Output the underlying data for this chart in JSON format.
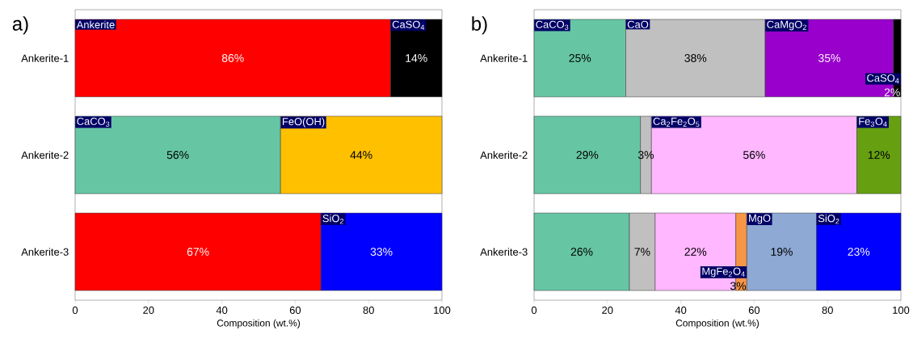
{
  "chart_data": [
    {
      "type": "bar",
      "title": "a)",
      "xlabel": "Composition (wt.%)",
      "orientation": "horizontal",
      "stacked": true,
      "categories": [
        "Ankerite-1",
        "Ankerite-2",
        "Ankerite-3"
      ],
      "xlim": [
        0,
        100
      ],
      "xticks": [
        0,
        20,
        40,
        60,
        80,
        100
      ],
      "series": [
        {
          "name": "Ankerite",
          "color": "#ff0000",
          "values": [
            86,
            null,
            67
          ],
          "value_labels": [
            "86%",
            null,
            "67%"
          ]
        },
        {
          "name": "CaCO$_{3}$",
          "color": "#66c6a4",
          "values": [
            null,
            56,
            null
          ],
          "value_labels": [
            null,
            "56%",
            null
          ]
        },
        {
          "name": "FeO(OH)",
          "color": "#ffc000",
          "values": [
            null,
            44,
            null
          ],
          "value_labels": [
            null,
            "44%",
            null
          ]
        },
        {
          "name": "CaSO$_{4}$",
          "color": "#000000",
          "values": [
            14,
            null,
            null
          ],
          "value_labels": [
            "14%",
            null,
            null
          ]
        },
        {
          "name": "SiO$_{2}$",
          "color": "#0000ff",
          "values": [
            null,
            null,
            33
          ],
          "value_labels": [
            null,
            null,
            "33%"
          ]
        }
      ]
    },
    {
      "type": "bar",
      "title": "b)",
      "xlabel": "Composition (wt.%)",
      "orientation": "horizontal",
      "stacked": true,
      "categories": [
        "Ankerite-1",
        "Ankerite-2",
        "Ankerite-3"
      ],
      "xlim": [
        0,
        100
      ],
      "xticks": [
        0,
        20,
        40,
        60,
        80,
        100
      ],
      "series": [
        {
          "name": "CaCO$_{3}$",
          "color": "#66c6a4",
          "values": [
            25,
            29,
            26
          ],
          "value_labels": [
            "25%",
            "29%",
            "26%"
          ]
        },
        {
          "name": "CaO",
          "color": "#c0c0c0",
          "values": [
            38,
            3,
            7
          ],
          "value_labels": [
            "38%",
            "3%",
            "7%"
          ]
        },
        {
          "name": "CaMgO$_{2}$",
          "color": "#9900cc",
          "values": [
            35,
            null,
            null
          ],
          "value_labels": [
            "35%",
            null,
            null
          ]
        },
        {
          "name": "CaSO$_{4}$",
          "color": "#000000",
          "values": [
            2,
            null,
            null
          ],
          "value_labels": [
            "2%",
            null,
            null
          ]
        },
        {
          "name": "Ca$_{2}$Fe$_{2}$O$_{5}$",
          "color": "#ffb7ff",
          "values": [
            null,
            56,
            22
          ],
          "value_labels": [
            null,
            "56%",
            "22%"
          ]
        },
        {
          "name": "MgFe$_{2}$O$_{4}$",
          "color": "#f79646",
          "values": [
            null,
            null,
            3
          ],
          "value_labels": [
            null,
            null,
            "3%"
          ]
        },
        {
          "name": "MgO",
          "color": "#8ea9d4",
          "values": [
            null,
            null,
            19
          ],
          "value_labels": [
            null,
            null,
            "19%"
          ]
        },
        {
          "name": "Fe$_{3}$O$_{4}$",
          "color": "#66a011",
          "values": [
            null,
            12,
            null
          ],
          "value_labels": [
            null,
            "12%",
            null
          ]
        },
        {
          "name": "SiO$_{2}$",
          "color": "#0000ff",
          "values": [
            null,
            null,
            23
          ],
          "value_labels": [
            null,
            null,
            "23%"
          ]
        }
      ]
    }
  ]
}
